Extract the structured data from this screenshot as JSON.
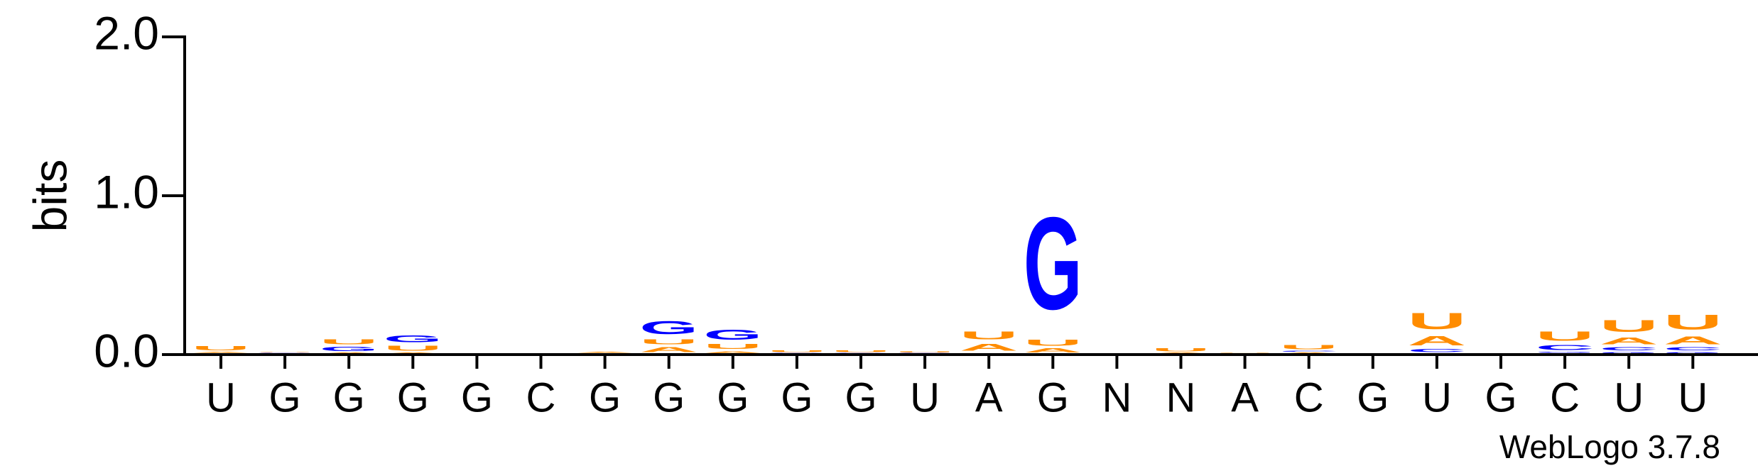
{
  "chart_data": {
    "type": "logo",
    "ylabel": "bits",
    "footer": "WebLogo 3.7.8",
    "categories": [
      "U",
      "G",
      "G",
      "G",
      "G",
      "C",
      "G",
      "G",
      "G",
      "G",
      "G",
      "U",
      "A",
      "G",
      "N",
      "N",
      "A",
      "C",
      "G",
      "U",
      "G",
      "C",
      "U",
      "U"
    ],
    "ylim": [
      0,
      2
    ],
    "yticks": [
      {
        "value": 0,
        "label": "0.0"
      },
      {
        "value": 1,
        "label": "1.0"
      },
      {
        "value": 2,
        "label": "2.0"
      }
    ],
    "series": [
      {
        "name": "A",
        "color": "#ff8c00",
        "values": [
          0.01,
          0.005,
          0.01,
          0.01,
          0.002,
          0.002,
          0.01,
          0.05,
          0.02,
          0.005,
          0.005,
          0.005,
          0.07,
          0.04,
          0.002,
          0.01,
          0.005,
          0.01,
          0.002,
          0.09,
          0.002,
          0.01,
          0.07,
          0.08
        ]
      },
      {
        "name": "C",
        "color": "#0000ff",
        "values": [
          0.005,
          0.002,
          0.005,
          0.005,
          0.002,
          0.002,
          0.002,
          0.005,
          0.005,
          0.002,
          0.002,
          0.002,
          0.005,
          0.005,
          0.002,
          0.002,
          0.002,
          0.01,
          0.002,
          0.03,
          0.002,
          0.05,
          0.03,
          0.03
        ]
      },
      {
        "name": "G",
        "color": "#0000ff",
        "values": [
          0.005,
          0.005,
          0.04,
          0.07,
          0.002,
          0.002,
          0.002,
          0.13,
          0.1,
          0.005,
          0.005,
          0.005,
          0.005,
          0.93,
          0.002,
          0.002,
          0.002,
          0.005,
          0.002,
          0.01,
          0.002,
          0.01,
          0.02,
          0.02
        ]
      },
      {
        "name": "U",
        "color": "#ff8c00",
        "values": [
          0.04,
          0.005,
          0.05,
          0.05,
          0.002,
          0.002,
          0.005,
          0.05,
          0.05,
          0.02,
          0.02,
          0.01,
          0.08,
          0.06,
          0.002,
          0.03,
          0.005,
          0.04,
          0.002,
          0.16,
          0.002,
          0.09,
          0.12,
          0.15
        ]
      }
    ]
  }
}
